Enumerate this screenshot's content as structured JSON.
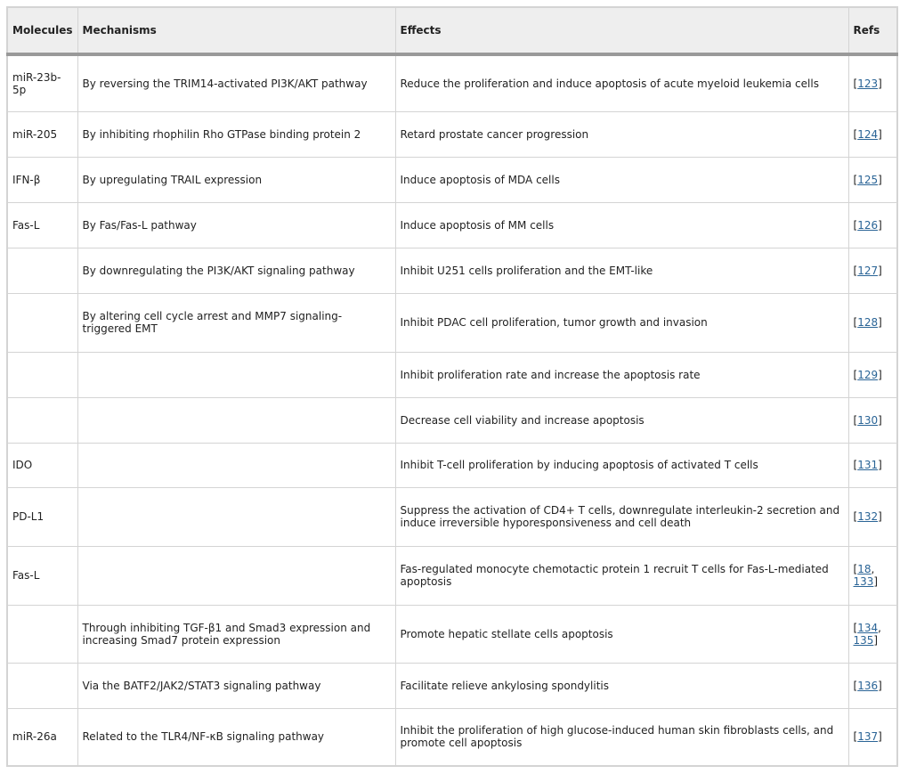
{
  "headers": [
    "Molecules",
    "Mechanisms",
    "Effects",
    "Refs"
  ],
  "rows": [
    {
      "molecule": "miR-23b-5p",
      "mechanism": "By reversing the TRIM14-activated PI3K/AKT pathway",
      "effect": "Reduce the proliferation and induce apoptosis of acute myeloid leukemia cells",
      "refs": [
        "123"
      ]
    },
    {
      "molecule": "miR-205",
      "mechanism": "By inhibiting rhophilin Rho GTPase binding protein 2",
      "effect": "Retard prostate cancer progression",
      "refs": [
        "124"
      ]
    },
    {
      "molecule": "IFN-β",
      "mechanism": "By upregulating TRAIL expression",
      "effect": "Induce apoptosis of MDA cells",
      "refs": [
        "125"
      ]
    },
    {
      "molecule": "Fas-L",
      "mechanism": "By Fas/Fas-L pathway",
      "effect": "Induce apoptosis of MM cells",
      "refs": [
        "126"
      ]
    },
    {
      "molecule": "",
      "mechanism": "By downregulating the PI3K/AKT signaling pathway",
      "effect": "Inhibit U251 cells proliferation and the EMT-like",
      "refs": [
        "127"
      ]
    },
    {
      "molecule": "",
      "mechanism": "By altering cell cycle arrest and MMP7 signaling-triggered EMT",
      "effect": "Inhibit PDAC cell proliferation, tumor growth and invasion",
      "refs": [
        "128"
      ]
    },
    {
      "molecule": "",
      "mechanism": "",
      "effect": "Inhibit proliferation rate and increase the apoptosis rate",
      "refs": [
        "129"
      ]
    },
    {
      "molecule": "",
      "mechanism": "",
      "effect": "Decrease cell viability and increase apoptosis",
      "refs": [
        "130"
      ]
    },
    {
      "molecule": "IDO",
      "mechanism": "",
      "effect": "Inhibit T-cell proliferation by inducing apoptosis of activated T cells",
      "refs": [
        "131"
      ]
    },
    {
      "molecule": "PD-L1",
      "mechanism": "",
      "effect": "Suppress the activation of CD4+ T cells, downregulate interleukin-2 secretion and induce irreversible hyporesponsiveness and cell death",
      "refs": [
        "132"
      ]
    },
    {
      "molecule": "Fas-L",
      "mechanism": "",
      "effect": "Fas-regulated monocyte chemotactic protein 1 recruit T cells for Fas-L-mediated apoptosis",
      "refs": [
        "18",
        "133"
      ]
    },
    {
      "molecule": "",
      "mechanism": "Through inhibiting TGF-β1 and Smad3 expression and increasing Smad7 protein expression",
      "effect": "Promote hepatic stellate cells apoptosis",
      "refs": [
        "134",
        "135"
      ]
    },
    {
      "molecule": "",
      "mechanism": "Via the BATF2/JAK2/STAT3 signaling pathway",
      "effect": "Facilitate relieve ankylosing spondylitis",
      "refs": [
        "136"
      ]
    },
    {
      "molecule": "miR-26a",
      "mechanism": "Related to the TLR4/NF-κB signaling pathway",
      "effect": "Inhibit the proliferation of high glucose-induced human skin fibroblasts cells, and promote cell apoptosis",
      "refs": [
        "137"
      ]
    }
  ]
}
